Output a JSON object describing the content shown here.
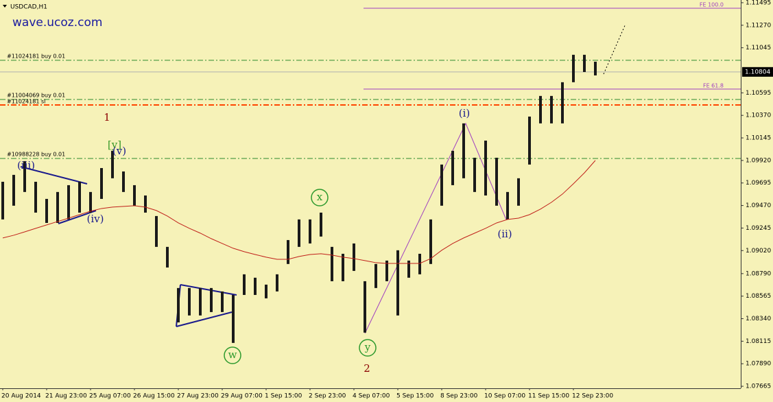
{
  "chart_data": {
    "type": "range",
    "title": "USDCAD,H1",
    "watermark": "wave.ucoz.com",
    "categories": [
      "20 Aug 2014",
      null,
      null,
      null,
      "21 Aug 23:00",
      null,
      null,
      null,
      "25 Aug 07:00",
      null,
      null,
      null,
      "26 Aug 15:00",
      null,
      null,
      null,
      "27 Aug 23:00",
      null,
      null,
      null,
      "29 Aug 07:00",
      null,
      null,
      null,
      "1 Sep 15:00",
      null,
      null,
      null,
      "2 Sep 23:00",
      null,
      null,
      null,
      "4 Sep 07:00",
      null,
      null,
      null,
      "5 Sep 15:00",
      null,
      null,
      null,
      "8 Sep 23:00",
      null,
      null,
      null,
      "10 Sep 07:00",
      null,
      null,
      null,
      "11 Sep 15:00",
      null,
      null,
      null,
      "12 Sep 23:00",
      null,
      null
    ],
    "high": [
      1.09707,
      1.09776,
      1.09913,
      1.09707,
      1.09536,
      1.09605,
      1.09673,
      1.09707,
      1.09605,
      1.09844,
      1.10016,
      1.0981,
      1.09673,
      1.0957,
      1.09365,
      1.09057,
      1.08646,
      1.08646,
      1.08646,
      1.08646,
      1.08612,
      1.08577,
      1.08783,
      1.08749,
      1.0868,
      1.08783,
      1.09125,
      1.09331,
      1.09331,
      1.09399,
      1.09057,
      1.08988,
      1.09091,
      1.08714,
      1.08886,
      1.0892,
      1.09023,
      1.0892,
      1.08988,
      1.09331,
      1.09879,
      1.10016,
      1.1029,
      1.09947,
      1.10118,
      1.09947,
      1.09605,
      1.09742,
      1.10358,
      1.10564,
      1.10564,
      1.10701,
      1.10975,
      1.10975,
      1.10906
    ],
    "low": [
      1.09331,
      1.09468,
      1.09605,
      1.09399,
      1.09296,
      1.09296,
      1.09331,
      1.09399,
      1.09399,
      1.09536,
      1.09742,
      1.09605,
      1.09468,
      1.09399,
      1.09057,
      1.08851,
      1.08303,
      1.08372,
      1.08372,
      1.08406,
      1.08406,
      1.08098,
      1.08577,
      1.08577,
      1.08543,
      1.08612,
      1.08886,
      1.09057,
      1.09091,
      1.0916,
      1.08714,
      1.08714,
      1.08817,
      1.08201,
      1.08646,
      1.08714,
      1.08372,
      1.08749,
      1.08783,
      1.08886,
      1.09468,
      1.09673,
      1.09742,
      1.09605,
      1.0957,
      1.09468,
      1.09331,
      1.09468,
      1.09879,
      1.1029,
      1.1029,
      1.1029,
      1.10701,
      1.10803,
      1.10769
    ],
    "bar_color": "#1a1a1a",
    "ma": {
      "color": "#c0201a",
      "values": [
        1.09146,
        1.09173,
        1.09207,
        1.09242,
        1.09276,
        1.0931,
        1.09344,
        1.09379,
        1.09413,
        1.0944,
        1.09454,
        1.09461,
        1.09468,
        1.09454,
        1.0942,
        1.09365,
        1.09296,
        1.09242,
        1.09194,
        1.09139,
        1.09091,
        1.09043,
        1.09009,
        1.08981,
        1.08954,
        1.08933,
        1.08933,
        1.08961,
        1.08981,
        1.08988,
        1.08975,
        1.08954,
        1.0894,
        1.0892,
        1.08899,
        1.08892,
        1.08892,
        1.08892,
        1.08892,
        1.0894,
        1.09023,
        1.09091,
        1.09146,
        1.09194,
        1.09242,
        1.09296,
        1.09331,
        1.09344,
        1.09379,
        1.09434,
        1.09502,
        1.09584,
        1.09687,
        1.09796,
        1.0992
      ]
    },
    "ylim": [
      1.07645,
      1.11522
    ],
    "yticks": [
      1.11495,
      {
        "value": 1.1127,
        "label": "1.11270"
      },
      1.11045,
      1.10595,
      {
        "value": 1.1037,
        "label": "1.10370"
      },
      1.10145,
      {
        "value": 1.0992,
        "label": "1.09920"
      },
      1.09695,
      {
        "value": 1.0947,
        "label": "1.09470"
      },
      1.09245,
      {
        "value": 1.0902,
        "label": "1.09020"
      },
      {
        "value": 1.0879,
        "label": "1.08790"
      },
      1.08565,
      {
        "value": 1.0834,
        "label": "1.08340"
      },
      1.08115,
      {
        "value": 1.0789,
        "label": "1.07890"
      },
      1.07665
    ],
    "current_price": 1.10804,
    "levels": [
      {
        "label": "#11024181 buy 0.01",
        "value": 1.1092,
        "color": "#2e8b2e",
        "style": "dashdot"
      },
      {
        "label": "#11004069 buy 0.01",
        "value": 1.10529,
        "color": "#2e8b2e",
        "style": "dashdot"
      },
      {
        "label": "#11024181 sl",
        "value": 1.10474,
        "color": "#ff4500",
        "style": "dashdot"
      },
      {
        "label": "#10988228 buy 0.01",
        "value": 1.0994,
        "color": "#2e8b2e",
        "style": "dashdot"
      },
      {
        "label": "FE 100.0",
        "value": 1.1144,
        "color": "#a040c0",
        "style": "solid"
      },
      {
        "label": "FE 61.8",
        "value": 1.10632,
        "color": "#a040c0",
        "style": "solid"
      }
    ],
    "annotations": [
      "(iii)",
      "[y]",
      "(v)",
      "(iv)",
      "1",
      "x",
      "w",
      "y",
      "2",
      "(i)",
      "(ii)"
    ]
  }
}
